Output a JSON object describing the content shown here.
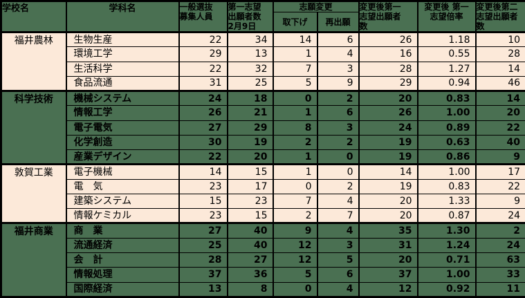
{
  "colors": {
    "header_bg": "#4a7052",
    "green_block_bg": "#4a7052",
    "peach_block_bg": "#fce9d9",
    "border": "#000000",
    "text": "#000000"
  },
  "chart_data": {
    "type": "table",
    "headers": {
      "school": "学校名",
      "department": "学科名",
      "capacity": "一般選抜\n募集人員",
      "first_choice": "第一志望\n出願者数\n2月9日",
      "change": "志願変更",
      "withdraw": "取下げ",
      "reapply": "再出願",
      "after_first": "変更後第一\n志望出願者\n数",
      "after_ratio": "変更後 第一\n志望倍率",
      "after_second": "変更後第二\n志望出願者\n数"
    },
    "blocks": [
      {
        "school": "福井農林",
        "style": "peach",
        "rows": [
          {
            "department": "生物生産",
            "values": [
              "22",
              "34",
              "14",
              "6",
              "26",
              "1.18",
              "10"
            ]
          },
          {
            "department": "環境工学",
            "values": [
              "29",
              "13",
              "1",
              "4",
              "16",
              "0.55",
              "28"
            ]
          },
          {
            "department": "生活科学",
            "values": [
              "22",
              "32",
              "7",
              "3",
              "28",
              "1.27",
              "14"
            ]
          },
          {
            "department": "食品流通",
            "values": [
              "31",
              "25",
              "5",
              "9",
              "29",
              "0.94",
              "46"
            ]
          }
        ]
      },
      {
        "school": "科学技術",
        "style": "green",
        "rows": [
          {
            "department": "機械システム",
            "values": [
              "24",
              "18",
              "0",
              "2",
              "20",
              "0.83",
              "14"
            ]
          },
          {
            "department": "情報工学",
            "values": [
              "26",
              "21",
              "1",
              "6",
              "26",
              "1.00",
              "20"
            ]
          },
          {
            "department": "電子電気",
            "values": [
              "27",
              "29",
              "8",
              "3",
              "24",
              "0.89",
              "22"
            ]
          },
          {
            "department": "化学創造",
            "values": [
              "30",
              "19",
              "2",
              "2",
              "19",
              "0.63",
              "40"
            ]
          },
          {
            "department": "産業デザイン",
            "values": [
              "22",
              "20",
              "1",
              "0",
              "19",
              "0.86",
              "9"
            ]
          }
        ]
      },
      {
        "school": "敦賀工業",
        "style": "peach",
        "rows": [
          {
            "department": "電子機械",
            "values": [
              "14",
              "15",
              "1",
              "0",
              "14",
              "1.00",
              "17"
            ]
          },
          {
            "department": "電　気",
            "values": [
              "23",
              "17",
              "0",
              "2",
              "19",
              "0.83",
              "22"
            ]
          },
          {
            "department": "建築システム",
            "values": [
              "15",
              "23",
              "7",
              "4",
              "20",
              "1.33",
              "9"
            ]
          },
          {
            "department": "情報ケミカル",
            "values": [
              "23",
              "15",
              "2",
              "7",
              "20",
              "0.87",
              "24"
            ]
          }
        ]
      },
      {
        "school": "福井商業",
        "style": "green",
        "rows": [
          {
            "department": "商　業",
            "values": [
              "27",
              "40",
              "9",
              "4",
              "35",
              "1.30",
              "2"
            ]
          },
          {
            "department": "流通経済",
            "values": [
              "25",
              "40",
              "12",
              "3",
              "31",
              "1.24",
              "24"
            ]
          },
          {
            "department": "会　計",
            "values": [
              "28",
              "27",
              "12",
              "5",
              "20",
              "0.71",
              "63"
            ]
          },
          {
            "department": "情報処理",
            "values": [
              "37",
              "36",
              "5",
              "6",
              "37",
              "1.00",
              "33"
            ]
          },
          {
            "department": "国際経済",
            "values": [
              "13",
              "8",
              "0",
              "4",
              "12",
              "0.92",
              "11"
            ]
          }
        ]
      }
    ]
  }
}
